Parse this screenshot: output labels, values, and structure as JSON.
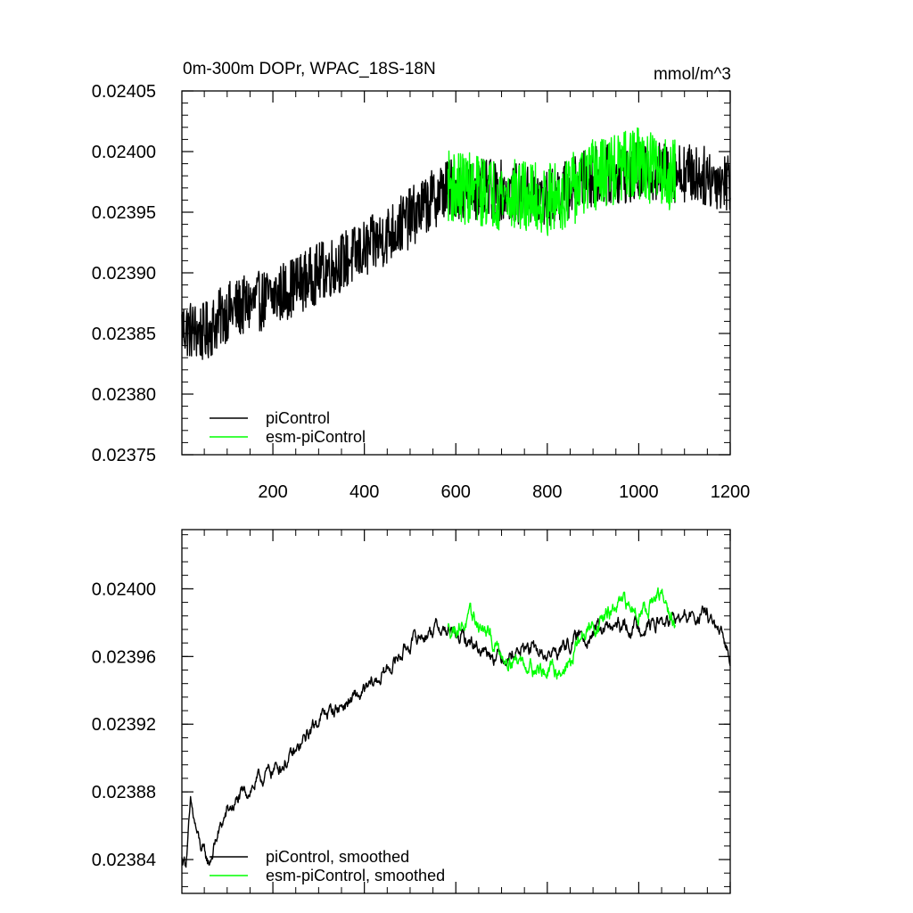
{
  "chart_data": [
    {
      "type": "line",
      "title": "0m-300m DOPr, WPAC_18S-18N",
      "units": "mmol/m^3",
      "xlim": [
        1,
        1200
      ],
      "ylim": [
        0.02375,
        0.02405
      ],
      "x_ticks": [
        200,
        400,
        600,
        800,
        1000,
        1200
      ],
      "x_tick_labels": [
        "200",
        "400",
        "600",
        "800",
        "1000",
        "1200"
      ],
      "y_ticks": [
        0.02375,
        0.0238,
        0.02385,
        0.0239,
        0.02395,
        0.024,
        0.02405
      ],
      "y_tick_labels": [
        "0.02375",
        "0.02380",
        "0.02385",
        "0.02390",
        "0.02395",
        "0.02400",
        "0.02405"
      ],
      "legend_position": "bottom-left",
      "series": [
        {
          "name": "piControl",
          "color": "#000000",
          "x_range": [
            1,
            1200
          ],
          "trend_x": [
            1,
            50,
            100,
            200,
            300,
            400,
            500,
            580,
            700,
            800,
            900,
            1000,
            1100,
            1200
          ],
          "trend_y": [
            0.023855,
            0.02385,
            0.023868,
            0.02388,
            0.0239,
            0.023918,
            0.023945,
            0.02397,
            0.023968,
            0.02396,
            0.02398,
            0.023983,
            0.023983,
            0.023975
          ],
          "noise_amplitude": 2.5e-05
        },
        {
          "name": "esm-piControl",
          "color": "#00ff00",
          "x_range": [
            583,
            1080
          ],
          "trend_x": [
            583,
            650,
            700,
            800,
            860,
            900,
            1000,
            1080
          ],
          "trend_y": [
            0.023972,
            0.023968,
            0.023965,
            0.02396,
            0.02397,
            0.02398,
            0.02399,
            0.02398
          ],
          "noise_amplitude": 3e-05
        }
      ]
    },
    {
      "type": "line",
      "title": "",
      "xlim": [
        1,
        1200
      ],
      "ylim": [
        0.02382,
        0.024035
      ],
      "x_ticks": [
        200,
        400,
        600,
        800,
        1000,
        1200
      ],
      "y_ticks": [
        0.02384,
        0.02388,
        0.02392,
        0.02396,
        0.024
      ],
      "y_tick_labels": [
        "0.02384",
        "0.02388",
        "0.02392",
        "0.02396",
        "0.02400"
      ],
      "legend_position": "bottom-left",
      "series": [
        {
          "name": "piControl, smoothed",
          "color": "#000000",
          "x_range": [
            1,
            1200
          ],
          "trend_x": [
            1,
            10,
            20,
            40,
            60,
            80,
            100,
            150,
            200,
            250,
            300,
            350,
            400,
            450,
            500,
            560,
            600,
            700,
            750,
            800,
            850,
            900,
            1000,
            1100,
            1150,
            1200
          ],
          "trend_y": [
            0.02384,
            0.02384,
            0.023871,
            0.023848,
            0.023837,
            0.023855,
            0.023868,
            0.023882,
            0.023893,
            0.023902,
            0.023924,
            0.023931,
            0.023938,
            0.023952,
            0.023968,
            0.023978,
            0.023972,
            0.02396,
            0.023965,
            0.02396,
            0.023968,
            0.023975,
            0.023978,
            0.023982,
            0.023985,
            0.02396
          ],
          "noise_amplitude": 8e-06
        },
        {
          "name": "esm-piControl, smoothed",
          "color": "#00ff00",
          "x_range": [
            583,
            1080
          ],
          "trend_x": [
            583,
            640,
            700,
            760,
            800,
            850,
            870,
            900,
            960,
            1000,
            1050,
            1080
          ],
          "trend_y": [
            0.023976,
            0.023982,
            0.023962,
            0.023956,
            0.02395,
            0.023955,
            0.02397,
            0.023978,
            0.02399,
            0.023988,
            0.023995,
            0.023978
          ],
          "noise_amplitude": 9e-06
        }
      ]
    }
  ]
}
